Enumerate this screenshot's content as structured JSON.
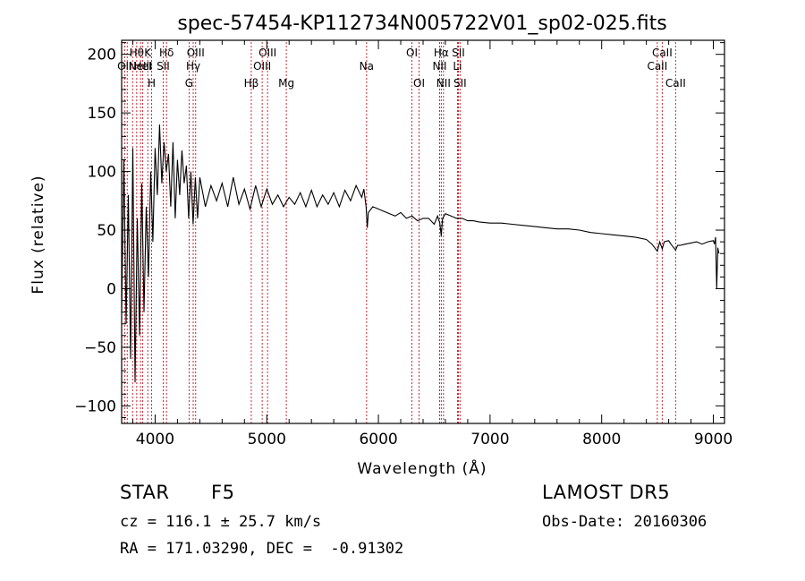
{
  "chart_data": {
    "type": "line",
    "title": "spec-57454-KP112734N005722V01_sp02-025.fits",
    "xlabel": "Wavelength (Å)",
    "ylabel": "Flux (relative)",
    "xlim": [
      3700,
      9100
    ],
    "ylim": [
      -115,
      212
    ],
    "x_ticks": [
      4000,
      5000,
      6000,
      7000,
      8000,
      9000
    ],
    "y_ticks": [
      -100,
      -50,
      0,
      50,
      100,
      150,
      200
    ],
    "grid": false,
    "series": [
      {
        "x": [
          3700,
          3720,
          3740,
          3760,
          3780,
          3800,
          3820,
          3840,
          3860,
          3880,
          3900,
          3920,
          3940,
          3960,
          3980,
          4000,
          4020,
          4040,
          4060,
          4080,
          4100,
          4120,
          4140,
          4160,
          4180,
          4200,
          4220,
          4240,
          4260,
          4280,
          4300,
          4320,
          4340,
          4360,
          4380,
          4400,
          4450,
          4500,
          4550,
          4600,
          4650,
          4700,
          4750,
          4800,
          4850,
          4900,
          4950,
          5000,
          5050,
          5100,
          5150,
          5200,
          5250,
          5300,
          5350,
          5400,
          5450,
          5500,
          5550,
          5600,
          5650,
          5700,
          5750,
          5800,
          5850,
          5870,
          5890,
          5900,
          5910,
          5950,
          6000,
          6050,
          6100,
          6150,
          6200,
          6250,
          6300,
          6350,
          6400,
          6450,
          6500,
          6530,
          6550,
          6563,
          6575,
          6600,
          6650,
          6700,
          6750,
          6800,
          6850,
          6900,
          7000,
          7100,
          7200,
          7300,
          7400,
          7500,
          7600,
          7700,
          7800,
          7900,
          8000,
          8100,
          8200,
          8300,
          8400,
          8450,
          8498,
          8520,
          8542,
          8560,
          8600,
          8620,
          8662,
          8680,
          8700,
          8750,
          8800,
          8850,
          8900,
          8950,
          9000,
          9010,
          9020,
          9030,
          9040,
          9050
        ],
        "values": [
          -20,
          110,
          -30,
          80,
          -60,
          120,
          -80,
          60,
          -40,
          90,
          -20,
          70,
          10,
          100,
          40,
          120,
          80,
          140,
          90,
          125,
          100,
          115,
          70,
          125,
          60,
          110,
          80,
          118,
          90,
          105,
          60,
          100,
          55,
          95,
          60,
          95,
          70,
          88,
          75,
          90,
          70,
          95,
          72,
          85,
          68,
          88,
          70,
          85,
          72,
          80,
          70,
          78,
          72,
          82,
          70,
          84,
          70,
          80,
          72,
          82,
          70,
          84,
          75,
          88,
          78,
          85,
          70,
          52,
          65,
          70,
          68,
          66,
          64,
          62,
          65,
          60,
          62,
          58,
          60,
          60,
          55,
          62,
          56,
          45,
          60,
          64,
          62,
          60,
          60,
          58,
          58,
          57,
          56,
          56,
          55,
          54,
          53,
          52,
          51,
          51,
          50,
          48,
          47,
          46,
          45,
          44,
          42,
          38,
          32,
          40,
          34,
          40,
          41,
          38,
          33,
          37,
          37,
          38,
          39,
          40,
          38,
          40,
          41,
          38,
          44,
          0,
          35,
          30
        ]
      }
    ],
    "lines": [
      {
        "x": 3727,
        "label": "OII",
        "row": 2
      },
      {
        "x": 3750,
        "label": "",
        "row": -1
      },
      {
        "x": 3798,
        "label": "",
        "row": -1
      },
      {
        "x": 3835,
        "label": "Hθ",
        "row": 1
      },
      {
        "x": 3869,
        "label": "NeIII",
        "row": 2
      },
      {
        "x": 3889,
        "label": "HeI",
        "row": 2
      },
      {
        "x": 3934,
        "label": "K",
        "row": 1
      },
      {
        "x": 3969,
        "label": "H",
        "row": 3
      },
      {
        "x": 4072,
        "label": "SII",
        "row": 2
      },
      {
        "x": 4102,
        "label": "Hδ",
        "row": 1
      },
      {
        "x": 4304,
        "label": "G",
        "row": 3
      },
      {
        "x": 4341,
        "label": "Hγ",
        "row": 2
      },
      {
        "x": 4363,
        "label": "OIII",
        "row": 1
      },
      {
        "x": 4861,
        "label": "Hβ",
        "row": 3
      },
      {
        "x": 4959,
        "label": "OIII",
        "row": 2
      },
      {
        "x": 5007,
        "label": "OIII",
        "row": 1
      },
      {
        "x": 5175,
        "label": "Mg",
        "row": 3
      },
      {
        "x": 5894,
        "label": "Na",
        "row": 2
      },
      {
        "x": 6300,
        "label": "OI",
        "row": 1
      },
      {
        "x": 6364,
        "label": "OI",
        "row": 3
      },
      {
        "x": 6548,
        "label": "NII",
        "row": 2
      },
      {
        "x": 6563,
        "label": "Hα",
        "row": 1
      },
      {
        "x": 6583,
        "label": "NII",
        "row": 3
      },
      {
        "x": 6708,
        "label": "Li",
        "row": 2
      },
      {
        "x": 6716,
        "label": "SII",
        "row": 1
      },
      {
        "x": 6731,
        "label": "SII",
        "row": 3
      },
      {
        "x": 8498,
        "label": "CaII",
        "row": 2
      },
      {
        "x": 8542,
        "label": "CaII",
        "row": 1
      },
      {
        "x": 8662,
        "label": "CaII",
        "row": 3
      }
    ]
  },
  "info": {
    "object_type": "STAR",
    "subclass": "F5",
    "survey": "LAMOST DR5",
    "cz": "cz = 116.1 ± 25.7 km/s",
    "obs_date": "Obs-Date: 20160306",
    "coords": "RA = 171.03290, DEC =  -0.91302"
  }
}
